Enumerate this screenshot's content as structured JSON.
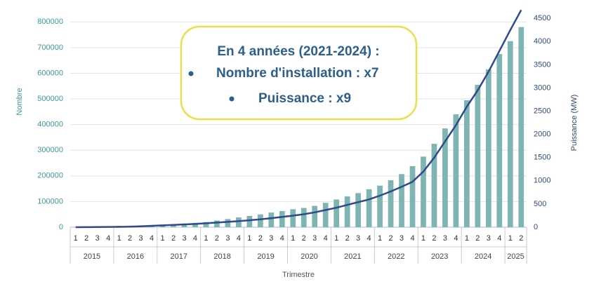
{
  "chart_data": {
    "type": "combo",
    "annotation": {
      "title": "En 4 années (2021-2024) :",
      "items": [
        "Nombre d'installation : x7",
        "Puissance : x9"
      ]
    },
    "x_label": "Trimestre",
    "y_label": "Nombre",
    "y2_label": "Puissance (MW)",
    "categories": [
      "1",
      "2",
      "3",
      "4",
      "1",
      "2",
      "3",
      "4",
      "1",
      "2",
      "3",
      "4",
      "1",
      "2",
      "3",
      "4",
      "1",
      "2",
      "3",
      "4",
      "1",
      "2",
      "3",
      "4",
      "1",
      "2",
      "3",
      "4",
      "1",
      "2",
      "3",
      "4",
      "1",
      "2",
      "3",
      "4",
      "1",
      "2",
      "3",
      "4",
      "1",
      "2"
    ],
    "groups": [
      "2015",
      "2016",
      "2017",
      "2018",
      "2019",
      "2020",
      "2021",
      "2022",
      "2023",
      "2024",
      "2025"
    ],
    "series": [
      {
        "name": "Nombre",
        "type": "bar",
        "color": "#7fb4b5",
        "values": [
          1000,
          2000,
          3000,
          4000,
          5000,
          6000,
          7000,
          8000,
          10000,
          12000,
          14000,
          17000,
          20000,
          26000,
          32000,
          38000,
          44000,
          50000,
          57000,
          63000,
          70000,
          75000,
          83000,
          95000,
          108000,
          120000,
          133000,
          148000,
          162000,
          183000,
          207000,
          238000,
          275000,
          325000,
          385000,
          440000,
          495000,
          555000,
          615000,
          675000,
          725000,
          780000
        ]
      },
      {
        "name": "Puissance",
        "type": "line",
        "axis": "y2",
        "color": "#2f4a8a",
        "values": [
          0,
          2,
          4,
          6,
          8,
          10,
          20,
          30,
          40,
          50,
          60,
          70,
          85,
          100,
          115,
          130,
          150,
          170,
          195,
          220,
          250,
          280,
          320,
          370,
          420,
          480,
          540,
          600,
          680,
          770,
          870,
          980,
          1200,
          1500,
          1850,
          2200,
          2600,
          2950,
          3350,
          3800,
          4250,
          4680
        ]
      }
    ],
    "ylim": [
      0,
      850000
    ],
    "yticks": [
      0,
      100000,
      200000,
      300000,
      400000,
      500000,
      600000,
      700000,
      800000
    ],
    "y2lim": [
      0,
      4700
    ],
    "y2ticks": [
      0,
      500,
      1000,
      1500,
      2000,
      2500,
      3000,
      3500,
      4000,
      4500
    ],
    "grid": true
  }
}
